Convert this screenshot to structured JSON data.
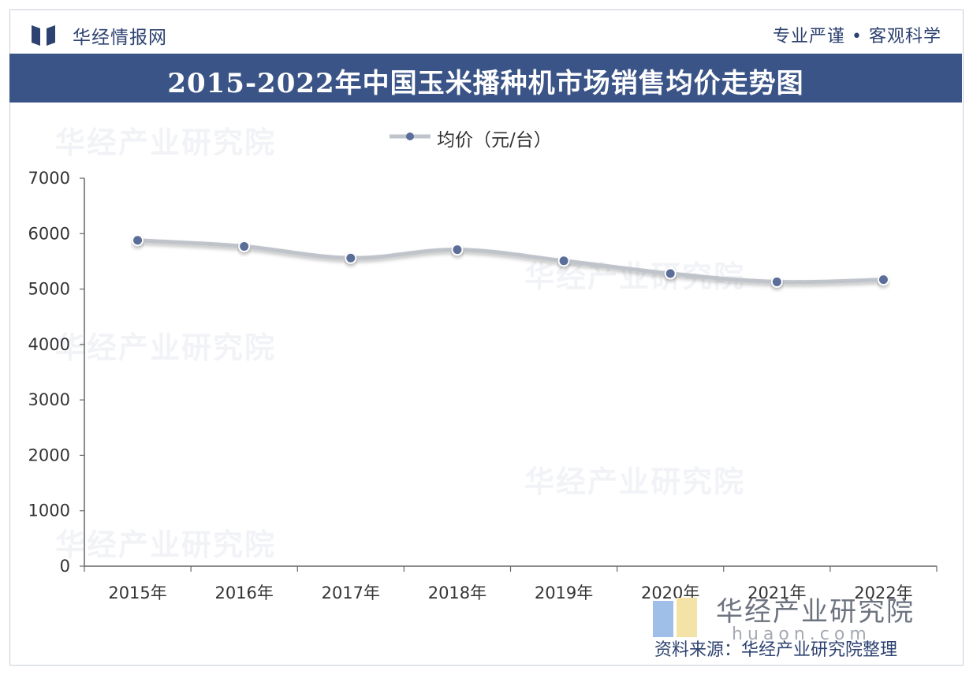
{
  "header": {
    "brand": "华经情报网",
    "slogan": "专业严谨 • 客观科学"
  },
  "chart_data": {
    "type": "line",
    "title": "2015-2022年中国玉米播种机市场销售均价走势图",
    "categories": [
      "2015年",
      "2016年",
      "2017年",
      "2018年",
      "2019年",
      "2020年",
      "2021年",
      "2022年"
    ],
    "series": [
      {
        "name": "均价（元/台）",
        "values": [
          5880,
          5770,
          5560,
          5710,
          5510,
          5280,
          5130,
          5170
        ]
      }
    ],
    "ylim": [
      0,
      7000
    ],
    "yticks": [
      0,
      1000,
      2000,
      3000,
      4000,
      5000,
      6000,
      7000
    ],
    "legend": "top-center",
    "grid": false,
    "colors": {
      "line": "#bfc3ca",
      "marker": "#5b6d99",
      "axis": "#666666"
    }
  },
  "watermark": {
    "text": "华经产业研究院",
    "url": "www.huaon.com"
  },
  "footer": {
    "brand_big": "华经产业研究院",
    "url": "huaon.com",
    "source": "资料来源：华经产业研究院整理"
  }
}
